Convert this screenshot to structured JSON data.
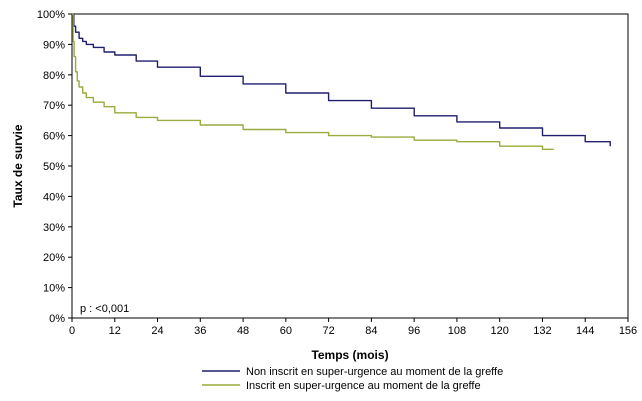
{
  "chart_data": {
    "type": "line",
    "title": "",
    "xlabel": "Temps (mois)",
    "ylabel": "Taux de survie",
    "xlim": [
      0,
      156
    ],
    "ylim": [
      0,
      100
    ],
    "x_ticks": [
      0,
      12,
      24,
      36,
      48,
      60,
      72,
      84,
      96,
      108,
      120,
      132,
      144,
      156
    ],
    "y_ticks": [
      0,
      10,
      20,
      30,
      40,
      50,
      60,
      70,
      80,
      90,
      100
    ],
    "x_tick_labels": [
      "0",
      "12",
      "24",
      "36",
      "48",
      "60",
      "72",
      "84",
      "96",
      "108",
      "120",
      "132",
      "144",
      "156"
    ],
    "y_tick_labels": [
      "0%",
      "10%",
      "20%",
      "30%",
      "40%",
      "50%",
      "60%",
      "70%",
      "80%",
      "90%",
      "100%"
    ],
    "grid": false,
    "legend_position": "bottom",
    "annotation": "p : <0,001",
    "series": [
      {
        "name": "Non inscrit en super-urgence au moment de la greffe",
        "color": "#1f1f6e",
        "x": [
          0,
          0.5,
          1,
          2,
          3,
          4,
          6,
          9,
          12,
          18,
          24,
          36,
          48,
          60,
          72,
          84,
          96,
          108,
          120,
          132,
          144,
          151
        ],
        "y": [
          100,
          96,
          94,
          92,
          91,
          90,
          89,
          87.5,
          86.5,
          84.5,
          82.5,
          79.5,
          77,
          74,
          71.5,
          69,
          66.5,
          64.5,
          62.5,
          60,
          58,
          56.5
        ]
      },
      {
        "name": "Inscrit en super-urgence au moment de la greffe",
        "color": "#9aaa3c",
        "x": [
          0,
          0.3,
          0.6,
          1,
          1.5,
          2,
          3,
          4,
          6,
          9,
          12,
          18,
          24,
          36,
          48,
          60,
          72,
          84,
          96,
          108,
          120,
          132,
          135
        ],
        "y": [
          100,
          91,
          86,
          81,
          78,
          76,
          74,
          72.5,
          71,
          69.5,
          67.5,
          66,
          65,
          63.5,
          62,
          61,
          60,
          59.5,
          58.5,
          58,
          56.5,
          55.5,
          55.3
        ]
      }
    ]
  }
}
